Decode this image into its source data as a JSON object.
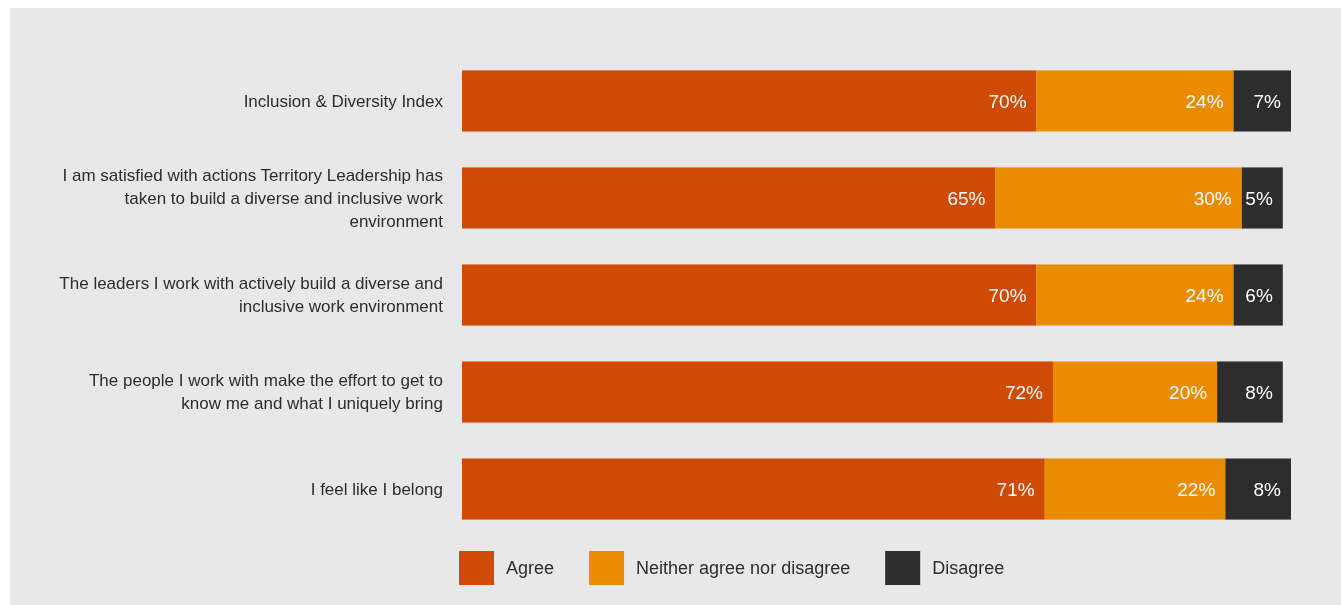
{
  "chart_data": {
    "type": "bar",
    "orientation": "horizontal",
    "stacked": true,
    "legend": "bottom",
    "categories": [
      "Inclusion & Diversity Index",
      "I am satisfied with actions Territory Leadership has taken to build a diverse and inclusive work environment",
      "The leaders I work with actively build a diverse and inclusive work environment",
      "The people I work with make the effort to get to know me and what I uniquely bring",
      "I feel like I belong"
    ],
    "series": [
      {
        "name": "Agree",
        "color": "#cf4a02",
        "values": [
          70,
          65,
          70,
          72,
          71
        ],
        "value_labels": [
          "70%",
          "65%",
          "70%",
          "72%",
          "71%"
        ]
      },
      {
        "name": "Neither agree nor disagree",
        "color": "#eb8c00",
        "values": [
          24,
          30,
          24,
          20,
          22
        ],
        "value_labels": [
          "24%",
          "30%",
          "24%",
          "20%",
          "22%"
        ]
      },
      {
        "name": "Disagree",
        "color": "#2d2d2d",
        "values": [
          7,
          5,
          6,
          8,
          8
        ],
        "value_labels": [
          "7%",
          "5%",
          "6%",
          "8%",
          "8%"
        ]
      }
    ]
  }
}
